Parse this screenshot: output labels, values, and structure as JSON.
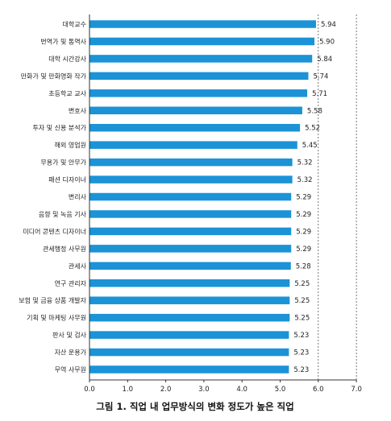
{
  "chart_data": {
    "type": "bar",
    "orientation": "horizontal",
    "categories": [
      "대학교수",
      "번역가 및 통역사",
      "대학 시간강사",
      "만화가 및 만화영화 작가",
      "초등학교 교사",
      "변호사",
      "투자 및 신용 분석가",
      "해외 영업원",
      "무용가 및 안무가",
      "패션 디자이너",
      "변리사",
      "음향 및 녹음 기사",
      "미디어 콘텐츠 디자이너",
      "관세행정 사무원",
      "관세사",
      "연구 관리자",
      "보험 및 금융 상품 개발자",
      "기획 및 마케팅 사무원",
      "판사 및 검사",
      "자산 운용가",
      "무역 사무원"
    ],
    "values": [
      5.94,
      5.9,
      5.84,
      5.74,
      5.71,
      5.58,
      5.52,
      5.45,
      5.32,
      5.32,
      5.29,
      5.29,
      5.29,
      5.29,
      5.28,
      5.25,
      5.25,
      5.25,
      5.23,
      5.23,
      5.23
    ],
    "value_labels": [
      "5.94",
      "5.90",
      "5.84",
      "5.74",
      "5.71",
      "5.58",
      "5.52",
      "5.45",
      "5.32",
      "5.32",
      "5.29",
      "5.29",
      "5.29",
      "5.29",
      "5.28",
      "5.25",
      "5.25",
      "5.25",
      "5.23",
      "5.23",
      "5.23"
    ],
    "xticks": [
      "0.0",
      "1.0",
      "2.0",
      "3.0",
      "4.0",
      "5.0",
      "6.0",
      "7.0"
    ],
    "xlim": [
      0,
      7
    ],
    "title": "그림 1. 직업 내 업무방식의 변화 정도가 높은 직업",
    "xlabel": "",
    "ylabel": "",
    "grid": "vertical dotted lines at 6.0 and 7.0",
    "bar_color": "#1b93d6"
  }
}
